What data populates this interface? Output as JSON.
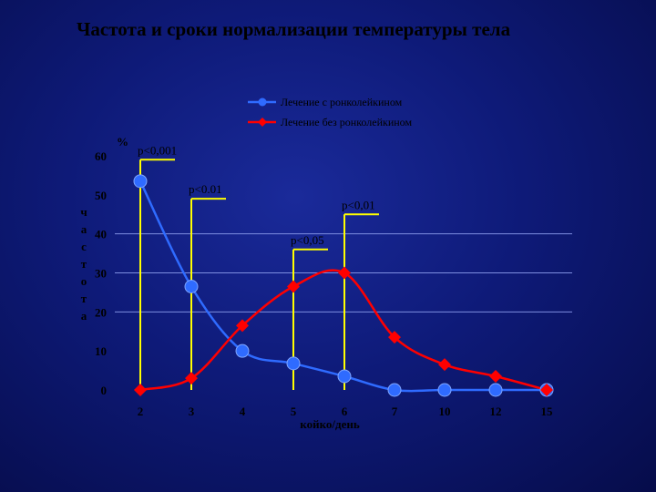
{
  "slide": {
    "title": "Частота и сроки нормализации температуры тела"
  },
  "chart_data": {
    "type": "line",
    "categories": [
      "2",
      "3",
      "4",
      "5",
      "6",
      "7",
      "10",
      "12",
      "15"
    ],
    "series": [
      {
        "name": "Лечение с ронколейкином",
        "color": "#2f6bff",
        "marker": "circle",
        "values": [
          53.5,
          26.5,
          10,
          6.8,
          3.5,
          0,
          0,
          0,
          0
        ]
      },
      {
        "name": "Лечение без ронколейкином",
        "color": "#ff0000",
        "marker": "diamond",
        "values": [
          0,
          3,
          16.5,
          26.5,
          30,
          13.5,
          6.5,
          3.5,
          0
        ]
      }
    ],
    "ylim": [
      0,
      60
    ],
    "yticks": [
      0,
      10,
      20,
      30,
      40,
      50,
      60
    ],
    "gridlines": [
      20,
      30,
      40
    ],
    "ylabel": "частота",
    "yunit": "%",
    "xlabel": "койко/день",
    "legend_position": "top",
    "annotations": [
      {
        "text": "p<0,001",
        "category": "2",
        "top": 59
      },
      {
        "text": "p<0.01",
        "category": "3",
        "top": 49
      },
      {
        "text": "p<0,05",
        "category": "5",
        "top": 36
      },
      {
        "text": "p<0,01",
        "category": "6",
        "top": 45
      }
    ]
  }
}
